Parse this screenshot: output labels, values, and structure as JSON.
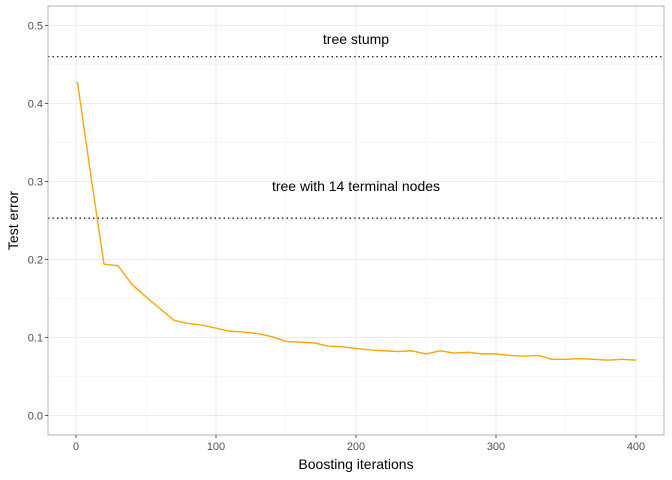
{
  "chart_data": {
    "type": "line",
    "xlabel": "Boosting iterations",
    "ylabel": "Test error",
    "xlim": [
      -20,
      420
    ],
    "ylim": [
      -0.025,
      0.525
    ],
    "x_ticks": [
      0,
      100,
      200,
      300,
      400
    ],
    "y_ticks": [
      0.0,
      0.1,
      0.2,
      0.3,
      0.4,
      0.5
    ],
    "x_tick_labels": [
      "0",
      "100",
      "200",
      "300",
      "400"
    ],
    "y_tick_labels": [
      "0.0",
      "0.1",
      "0.2",
      "0.3",
      "0.4",
      "0.5"
    ],
    "grid": true,
    "legend": "none",
    "series": [
      {
        "color": "#FFA500",
        "x": [
          1,
          10,
          20,
          30,
          40,
          50,
          60,
          70,
          80,
          90,
          100,
          110,
          120,
          130,
          140,
          150,
          160,
          170,
          180,
          190,
          200,
          210,
          220,
          230,
          240,
          250,
          260,
          270,
          280,
          290,
          300,
          310,
          320,
          330,
          340,
          350,
          360,
          370,
          380,
          390,
          400
        ],
        "y": [
          0.428,
          0.315,
          0.194,
          0.192,
          0.168,
          0.152,
          0.137,
          0.122,
          0.118,
          0.116,
          0.112,
          0.108,
          0.107,
          0.105,
          0.101,
          0.095,
          0.094,
          0.093,
          0.089,
          0.088,
          0.086,
          0.084,
          0.083,
          0.082,
          0.083,
          0.079,
          0.083,
          0.08,
          0.081,
          0.079,
          0.079,
          0.077,
          0.076,
          0.077,
          0.072,
          0.072,
          0.073,
          0.072,
          0.071,
          0.072,
          0.071
        ]
      }
    ],
    "reference_lines": [
      {
        "y": 0.46,
        "label": "tree stump",
        "label_x": 200,
        "label_y": 0.476,
        "style": "dotted"
      },
      {
        "y": 0.253,
        "label": "tree with 14 terminal nodes",
        "label_x": 200,
        "label_y": 0.288,
        "style": "dotted"
      }
    ]
  }
}
